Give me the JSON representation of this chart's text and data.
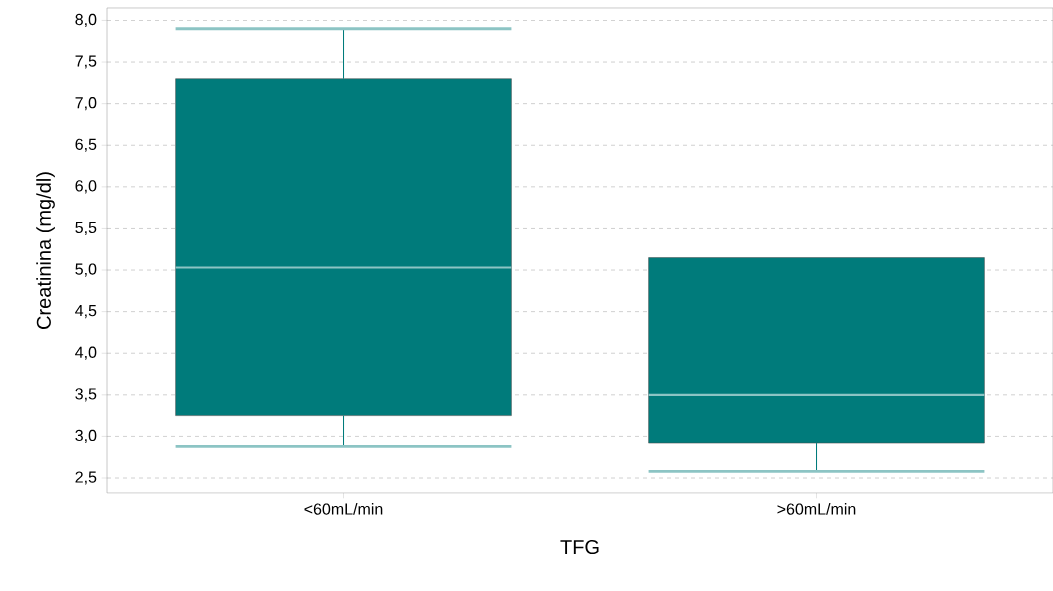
{
  "chart_data": {
    "type": "box",
    "xlabel": "TFG",
    "ylabel": "Creatinina (mg/dl)",
    "categories": [
      "<60mL/min",
      ">60mL/min"
    ],
    "boxes": [
      {
        "low": 2.88,
        "q1": 3.25,
        "median": 5.03,
        "q3": 7.3,
        "high": 7.9
      },
      {
        "low": 2.58,
        "q1": 2.92,
        "median": 3.5,
        "q3": 5.15,
        "high": 5.15
      }
    ],
    "color": "#007b7b",
    "ylim": [
      2.32,
      8.15
    ],
    "yticks": [
      {
        "value": 2.5,
        "label": "2,5"
      },
      {
        "value": 3,
        "label": "3,0"
      },
      {
        "value": 3.5,
        "label": "3,5"
      },
      {
        "value": 4,
        "label": "4,0"
      },
      {
        "value": 4.5,
        "label": "4,5"
      },
      {
        "value": 5,
        "label": "5,0"
      },
      {
        "value": 5.5,
        "label": "5,5"
      },
      {
        "value": 6,
        "label": "6,0"
      },
      {
        "value": 6.5,
        "label": "6,5"
      },
      {
        "value": 7,
        "label": "7,0"
      },
      {
        "value": 7.5,
        "label": "7,5"
      },
      {
        "value": 8,
        "label": "8,0"
      }
    ],
    "grid": "y"
  }
}
